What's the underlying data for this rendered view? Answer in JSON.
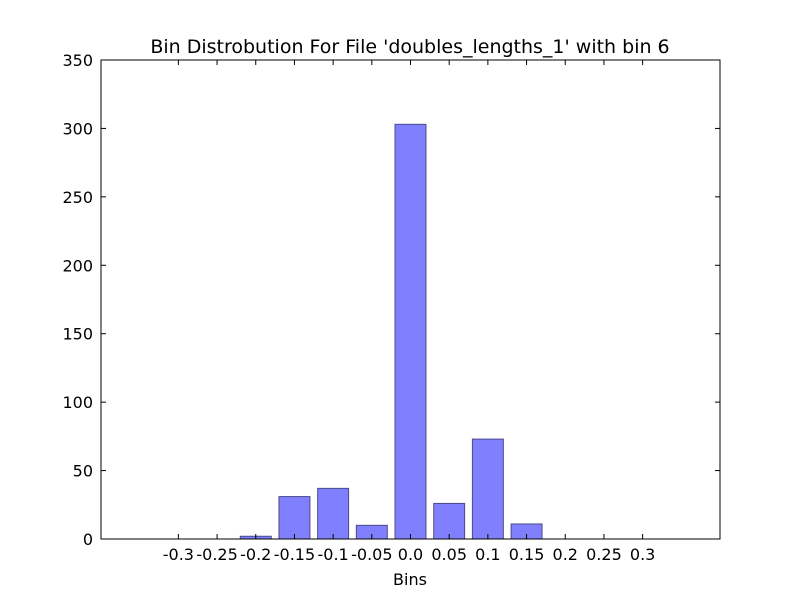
{
  "chart_data": {
    "type": "bar",
    "title": "Bin Distrobution For File 'doubles_lengths_1' with bin 6",
    "xlabel": "Bins",
    "ylabel": "",
    "categories": [
      "-0.3",
      "-0.25",
      "-0.2",
      "-0.15",
      "-0.1",
      "-0.05",
      "0.0",
      "0.05",
      "0.1",
      "0.15",
      "0.2",
      "0.25",
      "0.3"
    ],
    "x": [
      -0.3,
      -0.25,
      -0.2,
      -0.15,
      -0.1,
      -0.05,
      0.0,
      0.05,
      0.1,
      0.15,
      0.2,
      0.25,
      0.3
    ],
    "values": [
      0,
      0,
      2,
      31,
      37,
      10,
      303,
      26,
      73,
      11,
      0,
      0,
      0
    ],
    "xlim": [
      -0.4,
      0.4
    ],
    "ylim": [
      0,
      350
    ],
    "yticks": [
      0,
      50,
      100,
      150,
      200,
      250,
      300,
      350
    ],
    "bar_color": "#8080ff",
    "bar_edge_color": "#4a4a8c",
    "grid": false,
    "legend": "none"
  }
}
